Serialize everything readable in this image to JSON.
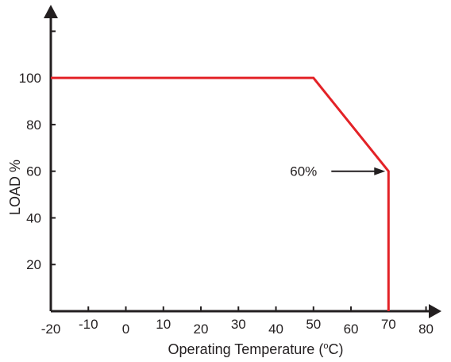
{
  "chart_data": {
    "type": "line",
    "title": "",
    "xlabel": "Operating Temperature (°C)",
    "xlabel_main": "Operating Temperature (",
    "xlabel_super": "o",
    "xlabel_tail": "C)",
    "ylabel": "LOAD %",
    "x_ticks": [
      -20,
      -10,
      0,
      10,
      20,
      30,
      40,
      50,
      60,
      70,
      80
    ],
    "x_tick_labels": [
      "-20",
      "-10",
      "0",
      "10",
      "20",
      "30",
      "40",
      "50",
      "60",
      "70",
      "80"
    ],
    "y_ticks": [
      20,
      40,
      60,
      80,
      100,
      120
    ],
    "y_tick_labels": [
      "20",
      "40",
      "60",
      "80",
      "100",
      ""
    ],
    "xlim": [
      -20,
      82
    ],
    "ylim": [
      0,
      130
    ],
    "grid": false,
    "series": [
      {
        "color": "#e32227",
        "x": [
          -20,
          50,
          70,
          70
        ],
        "y": [
          100,
          100,
          60,
          0
        ]
      }
    ],
    "annotations": [
      {
        "text": "60%",
        "x": 70,
        "y": 60,
        "arrow": true
      }
    ]
  }
}
